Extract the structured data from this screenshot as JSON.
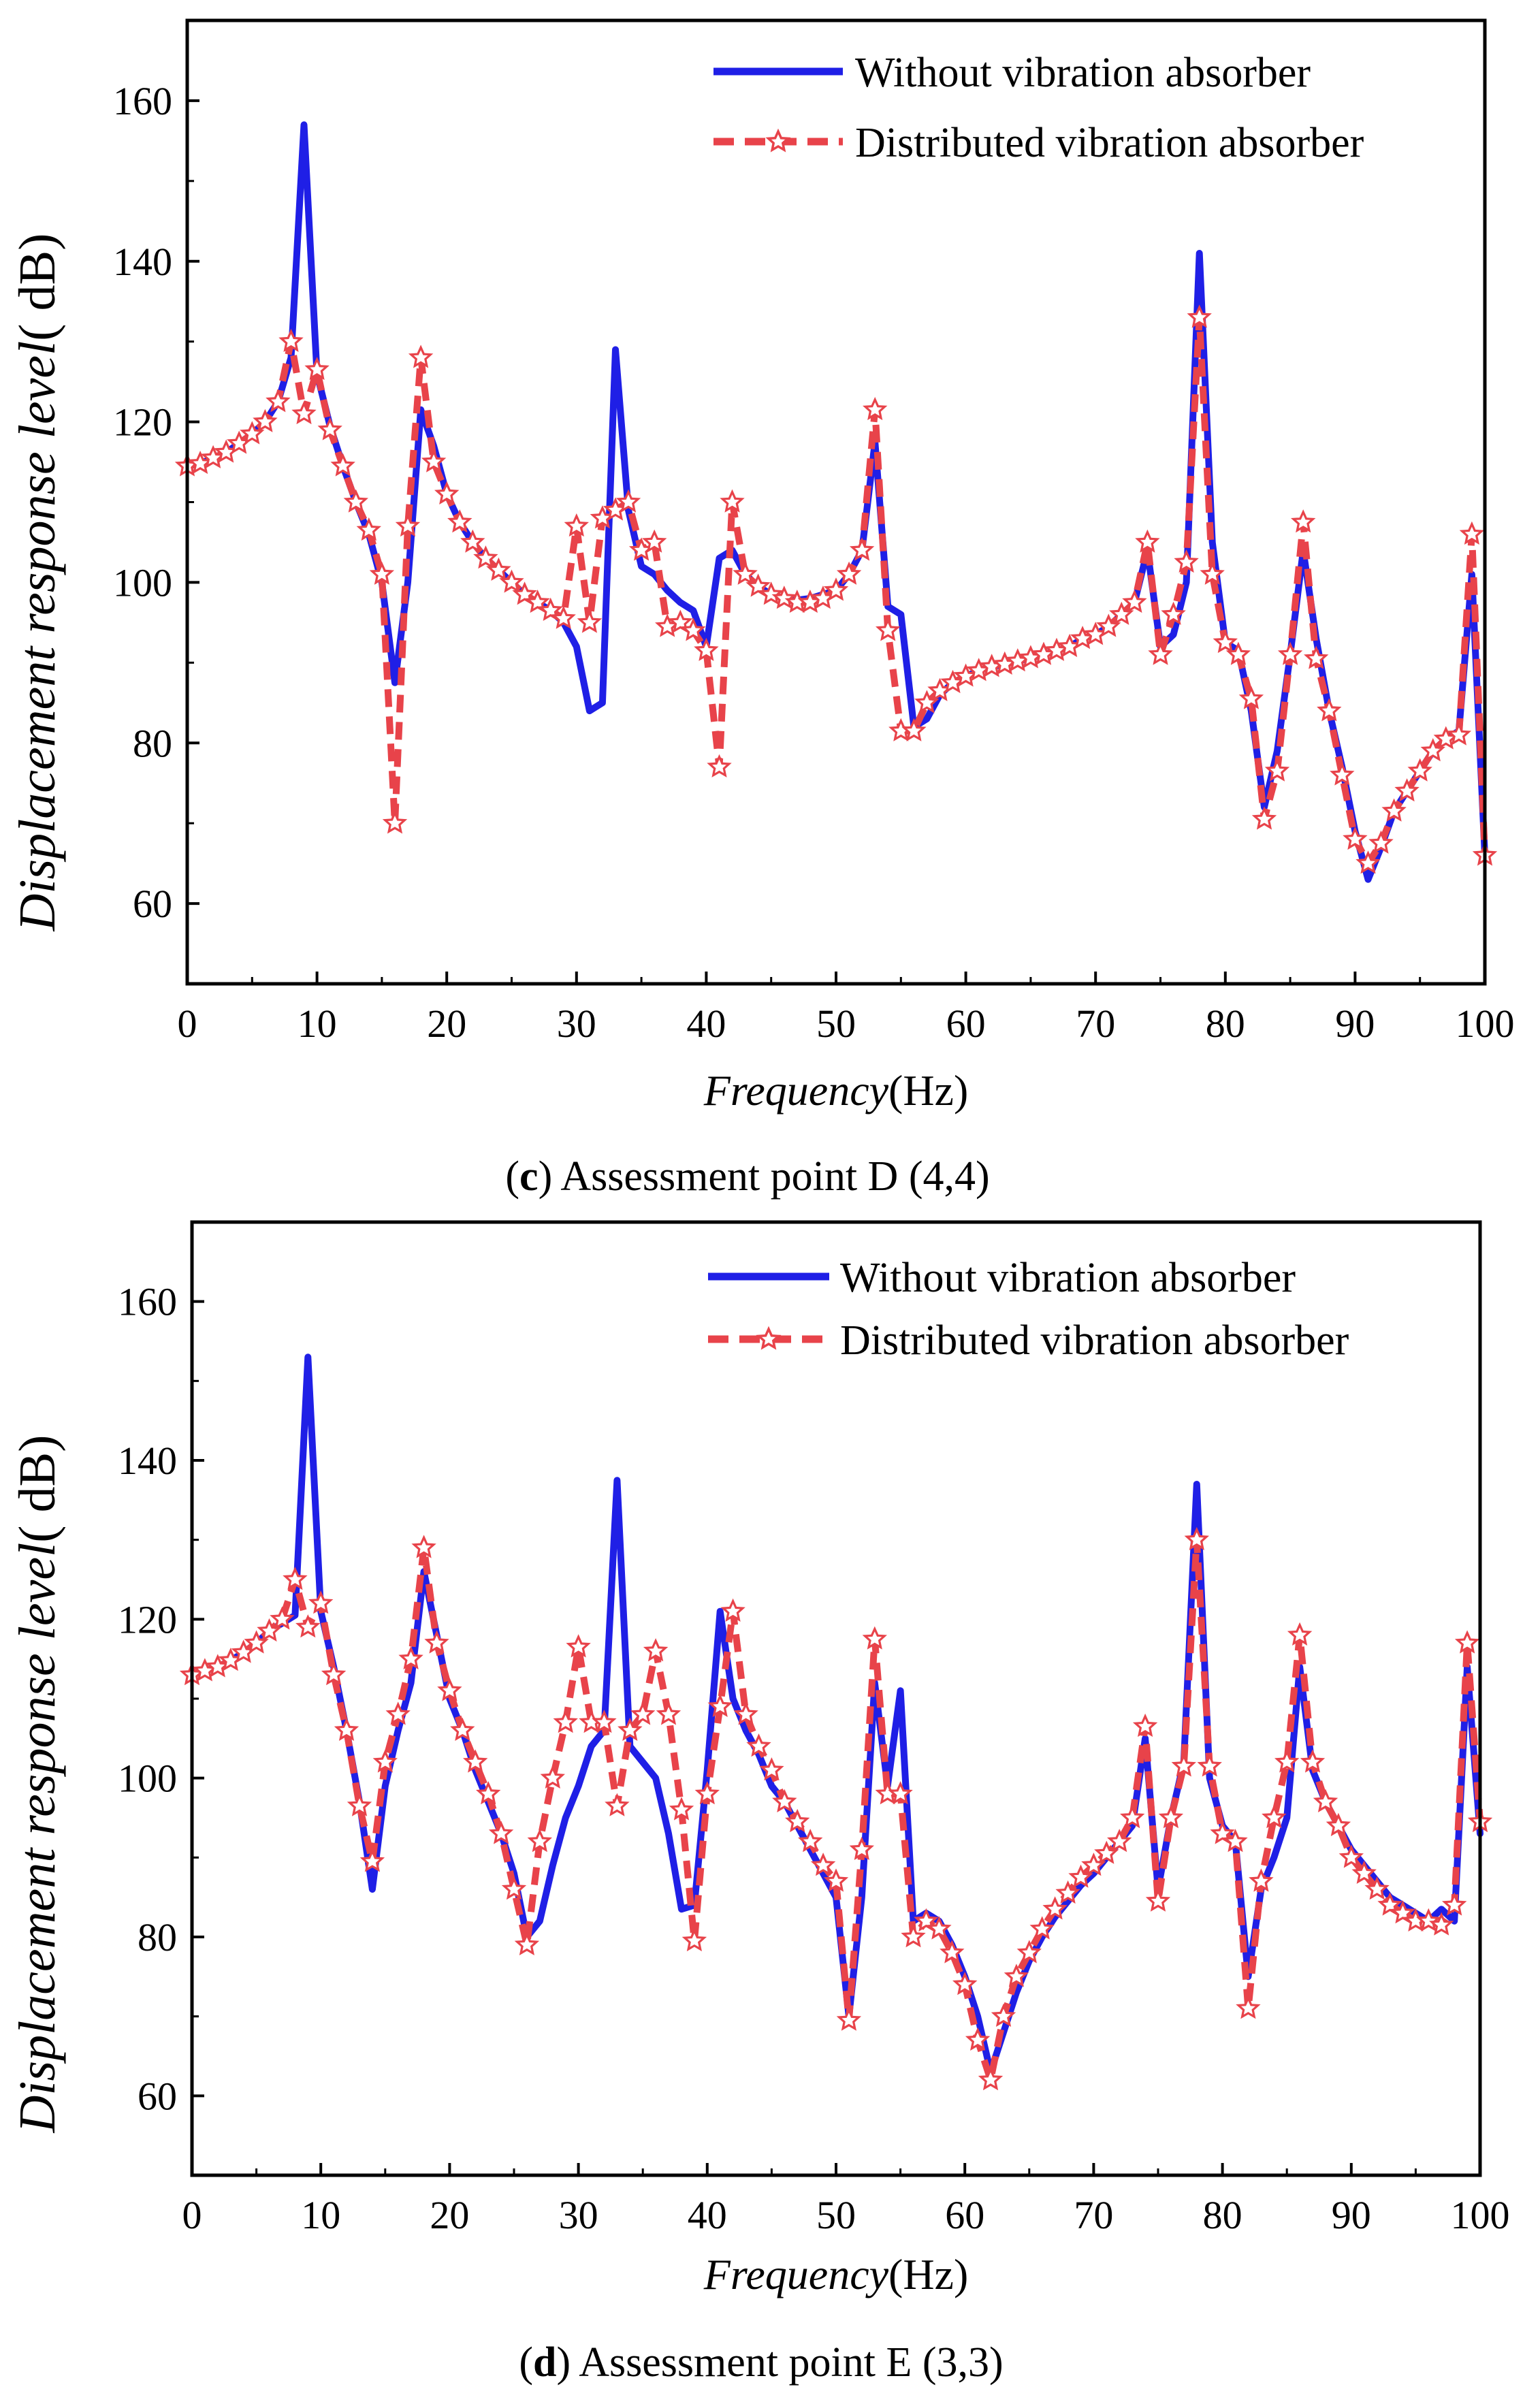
{
  "colors": {
    "blue": "#1f1fe6",
    "red": "#e8434a",
    "axis": "#000000"
  },
  "chart_data": [
    {
      "type": "line",
      "title": "",
      "caption_letter": "c",
      "caption_text": "Assessment point D (4,4)",
      "xlabel_italic": "Frequency",
      "xlabel_unit": "(Hz)",
      "ylabel_italic": "Displacement  response level",
      "ylabel_unit": "( dB)",
      "xlim": [
        0,
        100
      ],
      "ylim": [
        50,
        170
      ],
      "xticks": [
        0,
        10,
        20,
        30,
        40,
        50,
        60,
        70,
        80,
        90,
        100
      ],
      "xtick_labels": [
        "0",
        "10",
        "20",
        "30",
        "40",
        "50",
        "60",
        "70",
        "80",
        "90",
        "100"
      ],
      "yticks": [
        60,
        80,
        100,
        120,
        140,
        160
      ],
      "ytick_labels": [
        "60",
        "80",
        "100",
        "120",
        "140",
        "160"
      ],
      "legend_position": "top-right",
      "series": [
        {
          "name": "Without vibration absorber",
          "color": "#1f1fe6",
          "style": "solid",
          "x": [
            0,
            1,
            2,
            3,
            4,
            5,
            6,
            7,
            8,
            9,
            10,
            11,
            12,
            13,
            14,
            15,
            16,
            17,
            18,
            19,
            20,
            21,
            22,
            23,
            24,
            25,
            26,
            27,
            28,
            29,
            30,
            31,
            32,
            33,
            34,
            35,
            36,
            37,
            38,
            39,
            40,
            41,
            42,
            43,
            44,
            45,
            46,
            47,
            48,
            49,
            50,
            51,
            52,
            53,
            54,
            55,
            56,
            57,
            58,
            59,
            60,
            61,
            62,
            63,
            64,
            65,
            66,
            67,
            68,
            69,
            70,
            71,
            72,
            73,
            74,
            75,
            76,
            77,
            78,
            79,
            80,
            81,
            82,
            83,
            84,
            85,
            86,
            87,
            88,
            89,
            90,
            91,
            92,
            93,
            94,
            95,
            96,
            97,
            98,
            99,
            100
          ],
          "y": [
            114.5,
            114.8,
            115.5,
            116.2,
            117.3,
            118.5,
            120.0,
            122.5,
            128.0,
            157.0,
            126.0,
            119.5,
            114.5,
            110.0,
            106.0,
            100.0,
            87.5,
            100.0,
            121.5,
            117.0,
            111.0,
            107.5,
            105.0,
            103.0,
            101.5,
            100.0,
            98.5,
            97.5,
            96.5,
            95.0,
            92.0,
            84.0,
            85.0,
            129.0,
            109.0,
            102.0,
            101.0,
            99.0,
            97.5,
            96.5,
            92.0,
            103.0,
            104.0,
            101.0,
            99.5,
            98.5,
            98.0,
            97.8,
            98.0,
            98.5,
            99.0,
            101.0,
            104.0,
            117.5,
            97.0,
            96.0,
            82.0,
            83.0,
            86.0,
            87.5,
            88.3,
            89.0,
            89.5,
            89.8,
            90.2,
            90.6,
            91.0,
            91.5,
            92.0,
            93.0,
            93.5,
            94.5,
            96.0,
            97.5,
            104.0,
            92.0,
            93.5,
            100.0,
            141.0,
            105.0,
            92.5,
            91.5,
            84.0,
            72.0,
            79.0,
            91.0,
            104.0,
            93.0,
            84.0,
            77.0,
            69.0,
            63.0,
            67.0,
            71.5,
            74.0,
            76.5,
            79.0,
            80.5,
            81.5,
            101.0,
            66.0
          ]
        },
        {
          "name": "Distributed vibration absorber",
          "color": "#e8434a",
          "style": "dashed-star",
          "x": [
            0,
            1,
            2,
            3,
            4,
            5,
            6,
            7,
            8,
            9,
            10,
            11,
            12,
            13,
            14,
            15,
            16,
            17,
            18,
            19,
            20,
            21,
            22,
            23,
            24,
            25,
            26,
            27,
            28,
            29,
            30,
            31,
            32,
            33,
            34,
            35,
            36,
            37,
            38,
            39,
            40,
            41,
            42,
            43,
            44,
            45,
            46,
            47,
            48,
            49,
            50,
            51,
            52,
            53,
            54,
            55,
            56,
            57,
            58,
            59,
            60,
            61,
            62,
            63,
            64,
            65,
            66,
            67,
            68,
            69,
            70,
            71,
            72,
            73,
            74,
            75,
            76,
            77,
            78,
            79,
            80,
            81,
            82,
            83,
            84,
            85,
            86,
            87,
            88,
            89,
            90,
            91,
            92,
            93,
            94,
            95,
            96,
            97,
            98,
            99,
            100
          ],
          "y": [
            114.5,
            114.8,
            115.5,
            116.2,
            117.3,
            118.5,
            120.0,
            122.5,
            130.0,
            121.0,
            126.5,
            119.0,
            114.5,
            110.0,
            106.5,
            101.0,
            70.0,
            107.0,
            128.0,
            115.0,
            111.0,
            107.5,
            105.0,
            103.0,
            101.5,
            100.0,
            98.5,
            97.5,
            96.5,
            95.5,
            107.0,
            95.0,
            108.0,
            109.0,
            110.0,
            104.0,
            105.0,
            94.5,
            95.0,
            94.0,
            91.5,
            77.0,
            110.0,
            101.0,
            99.5,
            98.5,
            98.0,
            97.5,
            97.5,
            98.0,
            99.0,
            101.0,
            104.0,
            121.5,
            94.0,
            81.5,
            81.5,
            85.0,
            86.5,
            87.5,
            88.3,
            89.0,
            89.5,
            89.8,
            90.2,
            90.6,
            91.0,
            91.5,
            92.0,
            93.0,
            93.5,
            94.5,
            96.0,
            97.5,
            105.0,
            91.0,
            96.0,
            102.5,
            133.0,
            101.0,
            92.5,
            91.0,
            85.5,
            70.5,
            76.5,
            91.0,
            107.5,
            90.5,
            84.0,
            76.0,
            68.0,
            65.0,
            67.5,
            71.5,
            74.0,
            76.5,
            79.0,
            80.5,
            81.0,
            106.0,
            66.0
          ]
        }
      ]
    },
    {
      "type": "line",
      "title": "",
      "caption_letter": "d",
      "caption_text": "Assessment point E (3,3)",
      "xlabel_italic": "Frequency",
      "xlabel_unit": "(Hz)",
      "ylabel_italic": "Displacement  response level",
      "ylabel_unit": "( dB)",
      "xlim": [
        0,
        100
      ],
      "ylim": [
        50,
        170
      ],
      "xticks": [
        0,
        10,
        20,
        30,
        40,
        50,
        60,
        70,
        80,
        90,
        100
      ],
      "xtick_labels": [
        "0",
        "10",
        "20",
        "30",
        "40",
        "50",
        "60",
        "70",
        "80",
        "90",
        "100"
      ],
      "yticks": [
        60,
        80,
        100,
        120,
        140,
        160
      ],
      "ytick_labels": [
        "60",
        "80",
        "100",
        "120",
        "140",
        "160"
      ],
      "legend_position": "top-right",
      "series": [
        {
          "name": "Without vibration absorber",
          "color": "#1f1fe6",
          "style": "solid",
          "x": [
            0,
            1,
            2,
            3,
            4,
            5,
            6,
            7,
            8,
            9,
            10,
            11,
            12,
            13,
            14,
            15,
            16,
            17,
            18,
            19,
            20,
            21,
            22,
            23,
            24,
            25,
            26,
            27,
            28,
            29,
            30,
            31,
            32,
            33,
            34,
            35,
            36,
            37,
            38,
            39,
            40,
            41,
            42,
            43,
            44,
            45,
            46,
            47,
            48,
            49,
            50,
            51,
            52,
            53,
            54,
            55,
            56,
            57,
            58,
            59,
            60,
            61,
            62,
            63,
            64,
            65,
            66,
            67,
            68,
            69,
            70,
            71,
            72,
            73,
            74,
            75,
            76,
            77,
            78,
            79,
            80,
            81,
            82,
            83,
            84,
            85,
            86,
            87,
            88,
            89,
            90,
            91,
            92,
            93,
            94,
            95,
            96,
            97,
            98,
            99,
            100
          ],
          "y": [
            113.0,
            113.5,
            114.0,
            114.8,
            115.8,
            117.0,
            118.5,
            119.5,
            120.5,
            153.0,
            121.0,
            114.0,
            106.0,
            97.0,
            86.0,
            99.0,
            106.0,
            112.0,
            126.0,
            118.0,
            110.0,
            106.0,
            101.0,
            97.0,
            93.0,
            88.0,
            80.0,
            82.0,
            89.0,
            95.0,
            99.0,
            104.0,
            106.0,
            137.5,
            104.0,
            102.0,
            100.0,
            93.0,
            83.5,
            84.0,
            101.0,
            121.0,
            110.0,
            106.0,
            103.0,
            99.0,
            97.0,
            94.0,
            91.0,
            88.0,
            85.0,
            70.0,
            85.0,
            112.0,
            99.0,
            111.0,
            82.0,
            83.0,
            82.0,
            79.0,
            75.0,
            70.0,
            63.0,
            68.0,
            73.0,
            77.0,
            80.0,
            82.5,
            84.5,
            86.5,
            88.0,
            90.0,
            92.0,
            94.0,
            105.0,
            86.0,
            95.0,
            102.0,
            137.0,
            100.0,
            94.0,
            92.0,
            75.0,
            86.0,
            90.0,
            95.0,
            114.0,
            101.0,
            97.0,
            94.0,
            91.0,
            89.0,
            87.0,
            85.0,
            84.0,
            83.0,
            82.0,
            83.5,
            82.0,
            114.0,
            93.0
          ]
        },
        {
          "name": "Distributed vibration absorber",
          "color": "#e8434a",
          "style": "dashed-star",
          "x": [
            0,
            1,
            2,
            3,
            4,
            5,
            6,
            7,
            8,
            9,
            10,
            11,
            12,
            13,
            14,
            15,
            16,
            17,
            18,
            19,
            20,
            21,
            22,
            23,
            24,
            25,
            26,
            27,
            28,
            29,
            30,
            31,
            32,
            33,
            34,
            35,
            36,
            37,
            38,
            39,
            40,
            41,
            42,
            43,
            44,
            45,
            46,
            47,
            48,
            49,
            50,
            51,
            52,
            53,
            54,
            55,
            56,
            57,
            58,
            59,
            60,
            61,
            62,
            63,
            64,
            65,
            66,
            67,
            68,
            69,
            70,
            71,
            72,
            73,
            74,
            75,
            76,
            77,
            78,
            79,
            80,
            81,
            82,
            83,
            84,
            85,
            86,
            87,
            88,
            89,
            90,
            91,
            92,
            93,
            94,
            95,
            96,
            97,
            98,
            99,
            100
          ],
          "y": [
            113.0,
            113.5,
            114.0,
            114.8,
            115.8,
            117.0,
            118.5,
            120.0,
            125.0,
            119.0,
            122.0,
            113.0,
            106.0,
            96.5,
            89.5,
            102.0,
            108.0,
            115.0,
            129.0,
            117.0,
            111.0,
            106.0,
            102.0,
            98.0,
            93.0,
            86.0,
            79.0,
            92.0,
            100.0,
            107.0,
            116.5,
            107.0,
            107.0,
            96.5,
            106.0,
            108.0,
            116.0,
            108.0,
            96.0,
            79.5,
            98.0,
            109.0,
            121.0,
            108.0,
            104.0,
            101.0,
            97.0,
            94.5,
            92.0,
            89.0,
            87.0,
            69.5,
            91.0,
            117.5,
            98.0,
            98.0,
            80.0,
            82.0,
            81.0,
            78.0,
            74.0,
            67.0,
            62.0,
            70.0,
            75.0,
            78.0,
            81.0,
            83.5,
            85.5,
            87.5,
            89.0,
            90.5,
            92.0,
            95.0,
            106.5,
            84.5,
            95.0,
            101.5,
            130.0,
            101.5,
            93.0,
            92.0,
            71.0,
            87.0,
            95.0,
            102.0,
            118.0,
            102.0,
            97.0,
            94.0,
            90.0,
            88.0,
            86.0,
            84.0,
            83.0,
            82.0,
            82.0,
            81.5,
            84.0,
            117.0,
            94.5
          ]
        }
      ]
    }
  ]
}
